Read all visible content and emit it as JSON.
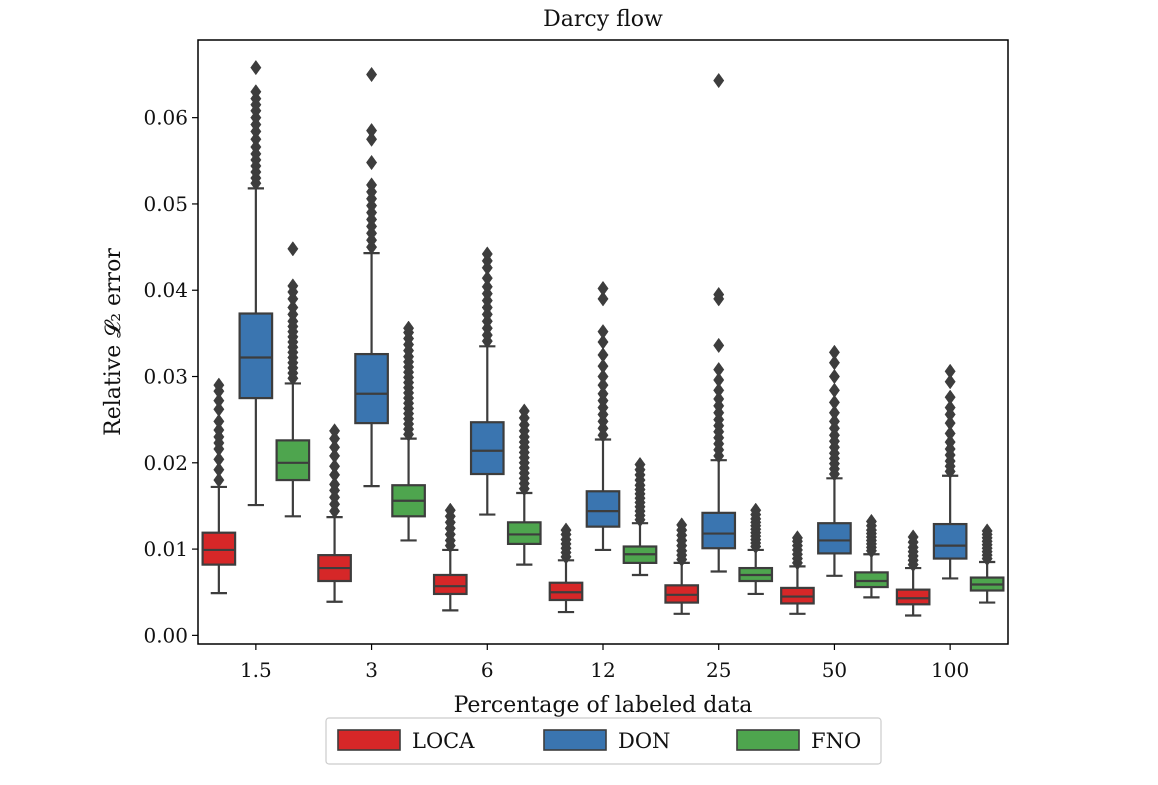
{
  "chart_data": {
    "type": "box",
    "title": "Darcy flow",
    "xlabel": "Percentage of labeled data",
    "ylabel": "Relative 𝓛₂ error",
    "categories": [
      "1.5",
      "3",
      "6",
      "12",
      "25",
      "50",
      "100"
    ],
    "ylim": [
      -0.001,
      0.069
    ],
    "yticks": [
      0.0,
      0.01,
      0.02,
      0.03,
      0.04,
      0.05,
      0.06
    ],
    "ytick_labels": [
      "0.00",
      "0.01",
      "0.02",
      "0.03",
      "0.04",
      "0.05",
      "0.06"
    ],
    "grid": false,
    "legend_position": "bottom-center",
    "series": [
      {
        "name": "LOCA",
        "color": "#d62728",
        "boxes": [
          {
            "whislo": 0.0049,
            "q1": 0.0082,
            "med": 0.0099,
            "q3": 0.0119,
            "whishi": 0.0172,
            "fliers": [
              0.018,
              0.0192,
              0.0204,
              0.0216,
              0.0223,
              0.023,
              0.0238,
              0.0248,
              0.0262,
              0.0272,
              0.0283,
              0.029
            ]
          },
          {
            "whislo": 0.0039,
            "q1": 0.0063,
            "med": 0.0078,
            "q3": 0.0093,
            "whishi": 0.0137,
            "fliers": [
              0.0144,
              0.0152,
              0.016,
              0.0168,
              0.0175,
              0.0186,
              0.0196,
              0.0208,
              0.0218,
              0.0228,
              0.0237
            ]
          },
          {
            "whislo": 0.0029,
            "q1": 0.0048,
            "med": 0.0057,
            "q3": 0.007,
            "whishi": 0.0099,
            "fliers": [
              0.0104,
              0.011,
              0.0117,
              0.0124,
              0.0131,
              0.0138,
              0.0145
            ]
          },
          {
            "whislo": 0.0027,
            "q1": 0.0041,
            "med": 0.005,
            "q3": 0.0061,
            "whishi": 0.0087,
            "fliers": [
              0.0091,
              0.0096,
              0.0101,
              0.0106,
              0.0111,
              0.0117,
              0.0122
            ]
          },
          {
            "whislo": 0.0025,
            "q1": 0.0038,
            "med": 0.0047,
            "q3": 0.0058,
            "whishi": 0.0084,
            "fliers": [
              0.0088,
              0.0093,
              0.0098,
              0.0104,
              0.011,
              0.0116,
              0.0122,
              0.0128
            ]
          },
          {
            "whislo": 0.0025,
            "q1": 0.0037,
            "med": 0.0045,
            "q3": 0.0055,
            "whishi": 0.008,
            "fliers": [
              0.0084,
              0.0089,
              0.0094,
              0.0099,
              0.0104,
              0.0109,
              0.0113
            ]
          },
          {
            "whislo": 0.0023,
            "q1": 0.0036,
            "med": 0.0043,
            "q3": 0.0053,
            "whishi": 0.0078,
            "fliers": [
              0.0082,
              0.0087,
              0.0092,
              0.0097,
              0.0102,
              0.0108,
              0.0114
            ]
          }
        ]
      },
      {
        "name": "DON",
        "color": "#3a75b0",
        "boxes": [
          {
            "whislo": 0.0151,
            "q1": 0.0275,
            "med": 0.0322,
            "q3": 0.0373,
            "whishi": 0.0518,
            "fliers": [
              0.0524,
              0.053,
              0.0537,
              0.0544,
              0.0551,
              0.0558,
              0.0566,
              0.0575,
              0.0584,
              0.0592,
              0.06,
              0.0608,
              0.0615,
              0.0622,
              0.063,
              0.0658
            ]
          },
          {
            "whislo": 0.0173,
            "q1": 0.0246,
            "med": 0.028,
            "q3": 0.0326,
            "whishi": 0.0443,
            "fliers": [
              0.045,
              0.0458,
              0.0466,
              0.0474,
              0.0482,
              0.049,
              0.0498,
              0.0506,
              0.0514,
              0.0522,
              0.0548,
              0.0575,
              0.0585,
              0.065
            ]
          },
          {
            "whislo": 0.014,
            "q1": 0.0187,
            "med": 0.0214,
            "q3": 0.0247,
            "whishi": 0.0335,
            "fliers": [
              0.0341,
              0.0348,
              0.0356,
              0.0364,
              0.0372,
              0.038,
              0.0388,
              0.0396,
              0.0404,
              0.0414,
              0.0426,
              0.0434,
              0.0442
            ]
          },
          {
            "whislo": 0.0099,
            "q1": 0.0126,
            "med": 0.0144,
            "q3": 0.0167,
            "whishi": 0.0227,
            "fliers": [
              0.0232,
              0.024,
              0.0248,
              0.0256,
              0.0264,
              0.0272,
              0.028,
              0.029,
              0.03,
              0.0312,
              0.0325,
              0.034,
              0.0352,
              0.039,
              0.0402
            ]
          },
          {
            "whislo": 0.0074,
            "q1": 0.0101,
            "med": 0.0118,
            "q3": 0.0142,
            "whishi": 0.0203,
            "fliers": [
              0.0208,
              0.0215,
              0.0222,
              0.0229,
              0.0236,
              0.0243,
              0.025,
              0.0258,
              0.0266,
              0.0274,
              0.0284,
              0.0296,
              0.0308,
              0.0336,
              0.039,
              0.0395,
              0.0643
            ]
          },
          {
            "whislo": 0.0069,
            "q1": 0.0095,
            "med": 0.011,
            "q3": 0.013,
            "whishi": 0.0182,
            "fliers": [
              0.0187,
              0.0193,
              0.0199,
              0.0205,
              0.0211,
              0.0218,
              0.0225,
              0.0232,
              0.024,
              0.0248,
              0.0258,
              0.027,
              0.0284,
              0.03,
              0.0316,
              0.0328
            ]
          },
          {
            "whislo": 0.0066,
            "q1": 0.0089,
            "med": 0.0104,
            "q3": 0.0129,
            "whishi": 0.0185,
            "fliers": [
              0.019,
              0.0196,
              0.0202,
              0.0209,
              0.0216,
              0.0224,
              0.0234,
              0.0246,
              0.0256,
              0.0264,
              0.0276,
              0.0294,
              0.0306
            ]
          }
        ]
      },
      {
        "name": "FNO",
        "color": "#4ea54e",
        "boxes": [
          {
            "whislo": 0.0138,
            "q1": 0.018,
            "med": 0.02,
            "q3": 0.0226,
            "whishi": 0.0292,
            "fliers": [
              0.0298,
              0.0304,
              0.031,
              0.0316,
              0.0322,
              0.0328,
              0.0334,
              0.034,
              0.0346,
              0.0352,
              0.0358,
              0.0364,
              0.0372,
              0.038,
              0.039,
              0.0398,
              0.0405,
              0.0448
            ]
          },
          {
            "whislo": 0.011,
            "q1": 0.0138,
            "med": 0.0156,
            "q3": 0.0174,
            "whishi": 0.0228,
            "fliers": [
              0.0233,
              0.0239,
              0.0245,
              0.0251,
              0.0257,
              0.0263,
              0.0269,
              0.0275,
              0.0281,
              0.0287,
              0.0293,
              0.0299,
              0.0305,
              0.0311,
              0.0317,
              0.0323,
              0.033,
              0.0337,
              0.0344,
              0.0351,
              0.0356
            ]
          },
          {
            "whislo": 0.0082,
            "q1": 0.0106,
            "med": 0.0117,
            "q3": 0.0131,
            "whishi": 0.0165,
            "fliers": [
              0.017,
              0.0176,
              0.0182,
              0.0188,
              0.0194,
              0.02,
              0.0206,
              0.0212,
              0.0218,
              0.0224,
              0.023,
              0.0237,
              0.0244,
              0.0252,
              0.026
            ]
          },
          {
            "whislo": 0.007,
            "q1": 0.0084,
            "med": 0.0094,
            "q3": 0.0103,
            "whishi": 0.013,
            "fliers": [
              0.0134,
              0.0139,
              0.0144,
              0.0149,
              0.0154,
              0.0159,
              0.0164,
              0.0169,
              0.0174,
              0.018,
              0.0186,
              0.0192,
              0.0198
            ]
          },
          {
            "whislo": 0.0048,
            "q1": 0.0063,
            "med": 0.007,
            "q3": 0.0078,
            "whishi": 0.0099,
            "fliers": [
              0.0103,
              0.0107,
              0.0111,
              0.0115,
              0.0119,
              0.0123,
              0.0127,
              0.0131,
              0.0135,
              0.014,
              0.0145
            ]
          },
          {
            "whislo": 0.0044,
            "q1": 0.0056,
            "med": 0.0063,
            "q3": 0.0073,
            "whishi": 0.0094,
            "fliers": [
              0.0098,
              0.0102,
              0.0106,
              0.011,
              0.0114,
              0.0118,
              0.0122,
              0.0127,
              0.0132
            ]
          },
          {
            "whislo": 0.0038,
            "q1": 0.0052,
            "med": 0.0059,
            "q3": 0.0067,
            "whishi": 0.0085,
            "fliers": [
              0.0089,
              0.0093,
              0.0097,
              0.0101,
              0.0105,
              0.0109,
              0.0113,
              0.0117,
              0.0121
            ]
          }
        ]
      }
    ]
  }
}
